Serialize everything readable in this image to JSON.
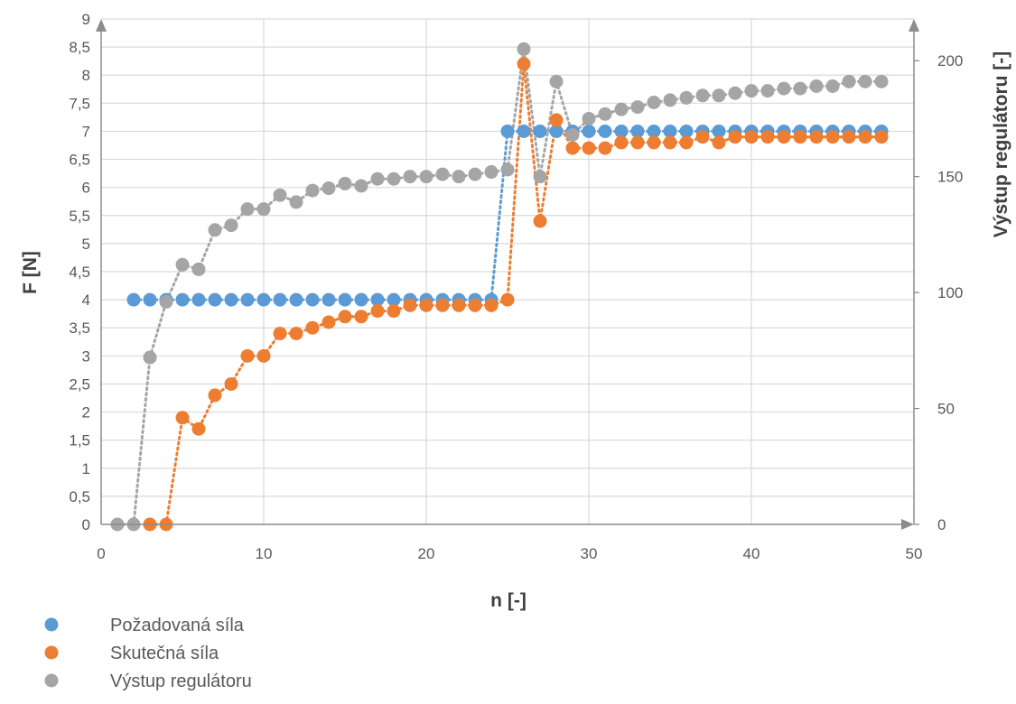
{
  "chart_data": {
    "type": "scatter",
    "xlabel": "n [-]",
    "ylabel": "F [N]",
    "y2label": "Výstup regulátoru [-]",
    "xlim": [
      0,
      50
    ],
    "ylim": [
      0,
      9
    ],
    "y2lim": [
      0,
      218
    ],
    "xticks": [
      "0",
      "10",
      "20",
      "30",
      "40",
      "50"
    ],
    "yticks": [
      "0",
      "0,5",
      "1",
      "1,5",
      "2",
      "2,5",
      "3",
      "3,5",
      "4",
      "4,5",
      "5",
      "5,5",
      "6",
      "6,5",
      "7",
      "7,5",
      "8",
      "8,5",
      "9"
    ],
    "y2ticks": [
      "0",
      "50",
      "100",
      "150",
      "200"
    ],
    "grid": true,
    "legend_position": "bottom-left",
    "series": [
      {
        "name": "Požadovaná síla",
        "axis": "left",
        "color": "#5B9BD5",
        "x": [
          2,
          3,
          4,
          5,
          6,
          7,
          8,
          9,
          10,
          11,
          12,
          13,
          14,
          15,
          16,
          17,
          18,
          19,
          20,
          21,
          22,
          23,
          24,
          25,
          26,
          27,
          28,
          29,
          30,
          31,
          32,
          33,
          34,
          35,
          36,
          37,
          38,
          39,
          40,
          41,
          42,
          43,
          44,
          45,
          46,
          47,
          48
        ],
        "y": [
          4,
          4,
          4,
          4,
          4,
          4,
          4,
          4,
          4,
          4,
          4,
          4,
          4,
          4,
          4,
          4,
          4,
          4,
          4,
          4,
          4,
          4,
          4,
          7,
          7,
          7,
          7,
          7,
          7,
          7,
          7,
          7,
          7,
          7,
          7,
          7,
          7,
          7,
          7,
          7,
          7,
          7,
          7,
          7,
          7,
          7,
          7
        ]
      },
      {
        "name": "Skutečná síla",
        "axis": "left",
        "color": "#ED7D31",
        "x": [
          3,
          4,
          5,
          6,
          7,
          8,
          9,
          10,
          11,
          12,
          13,
          14,
          15,
          16,
          17,
          18,
          19,
          20,
          21,
          22,
          23,
          24,
          25,
          26,
          27,
          28,
          29,
          30,
          31,
          32,
          33,
          34,
          35,
          36,
          37,
          38,
          39,
          40,
          41,
          42,
          43,
          44,
          45,
          46,
          47,
          48
        ],
        "y": [
          0,
          0,
          1.9,
          1.7,
          2.3,
          2.5,
          3,
          3,
          3.4,
          3.4,
          3.5,
          3.6,
          3.7,
          3.7,
          3.8,
          3.8,
          3.9,
          3.9,
          3.9,
          3.9,
          3.9,
          3.9,
          4,
          8.2,
          5.4,
          7.2,
          6.7,
          6.7,
          6.7,
          6.8,
          6.8,
          6.8,
          6.8,
          6.8,
          6.9,
          6.8,
          6.9,
          6.9,
          6.9,
          6.9,
          6.9,
          6.9,
          6.9,
          6.9,
          6.9,
          6.9
        ]
      },
      {
        "name": "Výstup regulátoru",
        "axis": "right",
        "color": "#A5A5A5",
        "x": [
          1,
          2,
          3,
          4,
          5,
          6,
          7,
          8,
          9,
          10,
          11,
          12,
          13,
          14,
          15,
          16,
          17,
          18,
          19,
          20,
          21,
          22,
          23,
          24,
          25,
          26,
          27,
          28,
          29,
          30,
          31,
          32,
          33,
          34,
          35,
          36,
          37,
          38,
          39,
          40,
          41,
          42,
          43,
          44,
          45,
          46,
          47,
          48
        ],
        "y": [
          0,
          0,
          72,
          96,
          112,
          110,
          127,
          129,
          136,
          136,
          142,
          139,
          144,
          145,
          147,
          146,
          149,
          149,
          150,
          150,
          151,
          150,
          151,
          152,
          153,
          205,
          150,
          191,
          168,
          175,
          177,
          179,
          180,
          182,
          183,
          184,
          185,
          185,
          186,
          187,
          187,
          188,
          188,
          189,
          189,
          191,
          191,
          191
        ]
      }
    ]
  }
}
